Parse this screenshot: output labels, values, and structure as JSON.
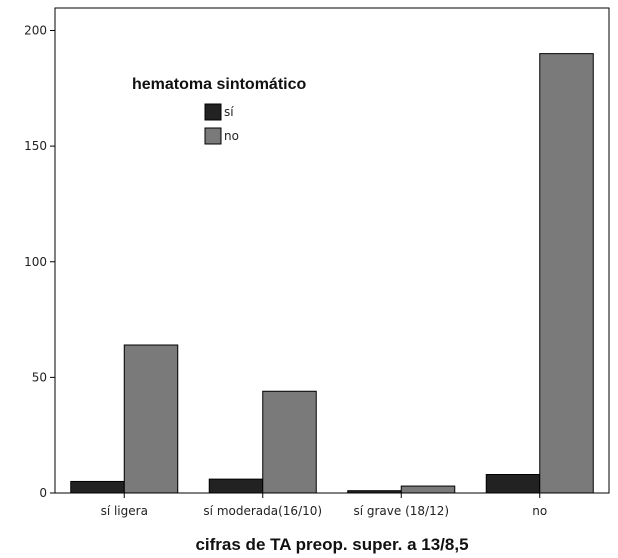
{
  "chart_data": {
    "type": "bar",
    "title": "",
    "xlabel": "cifras de TA preop. super. a 13/8,5",
    "ylabel": "",
    "ylim": [
      0,
      210
    ],
    "yticks": [
      0,
      50,
      100,
      150,
      200
    ],
    "categories": [
      "sí ligera",
      "sí moderada(16/10)",
      "sí grave (18/12)",
      "no"
    ],
    "legend": {
      "title": "hematoma sintomático",
      "placement": "upper-left"
    },
    "series": [
      {
        "name": "sí",
        "values": [
          5,
          6,
          1,
          8
        ],
        "color": "#222222"
      },
      {
        "name": "no",
        "values": [
          64,
          44,
          3,
          190
        ],
        "color": "#7a7a7a"
      }
    ],
    "grid": false
  }
}
